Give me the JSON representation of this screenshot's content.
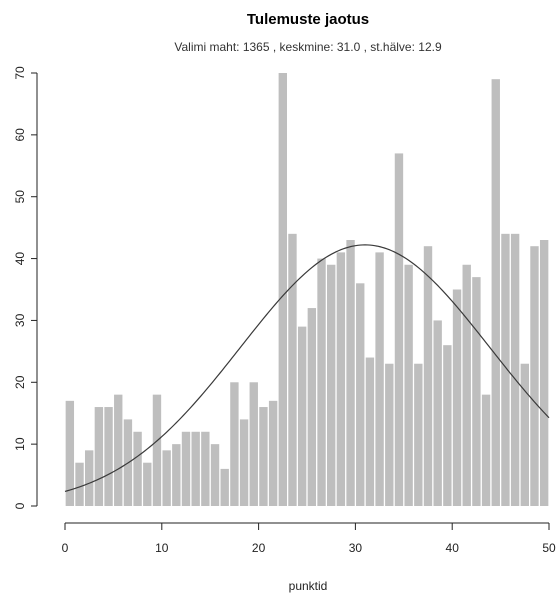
{
  "chart_data": {
    "type": "bar",
    "title": "Tulemuste jaotus",
    "subtitle": "Valimi maht: 1365 , keskmine: 31.0 , st.hälve: 12.9",
    "xlabel": "punktid",
    "ylabel": "",
    "xlim": [
      0,
      50
    ],
    "ylim": [
      0,
      70
    ],
    "x_ticks": [
      "0",
      "10",
      "20",
      "30",
      "40",
      "50"
    ],
    "y_ticks": [
      "0",
      "10",
      "20",
      "30",
      "40",
      "50",
      "60",
      "70"
    ],
    "bin_start": 0,
    "bin_width": 1,
    "values": [
      17,
      7,
      9,
      16,
      16,
      18,
      14,
      12,
      7,
      18,
      9,
      10,
      12,
      12,
      12,
      10,
      6,
      20,
      14,
      20,
      16,
      17,
      70,
      44,
      29,
      32,
      40,
      39,
      41,
      43,
      36,
      24,
      41,
      23,
      57,
      39,
      23,
      42,
      30,
      26,
      35,
      39,
      37,
      18,
      69,
      44,
      44,
      23,
      42,
      43
    ],
    "bar_color": "#bebebe",
    "curve": {
      "type": "normal-density",
      "mean": 31.0,
      "sd": 12.9,
      "n": 1365,
      "color": "#3a3a3a"
    },
    "grid": false
  }
}
